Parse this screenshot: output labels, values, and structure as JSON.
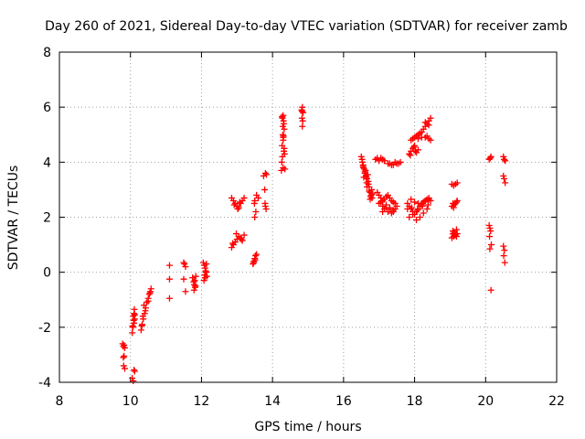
{
  "chart_data": {
    "type": "scatter",
    "title": "Day 260 of 2021, Sidereal Day-to-day VTEC variation (SDTVAR) for receiver zamb",
    "xlabel": "GPS time / hours",
    "ylabel": "SDTVAR / TECUs",
    "xlim": [
      8,
      22
    ],
    "ylim": [
      -4,
      8
    ],
    "xticks": [
      8,
      10,
      12,
      14,
      16,
      18,
      20,
      22
    ],
    "yticks": [
      -4,
      -2,
      0,
      2,
      4,
      6,
      8
    ],
    "xtick_labels": [
      "8",
      "10",
      "12",
      "14",
      "16",
      "18",
      "20",
      "22"
    ],
    "ytick_labels": [
      "-4",
      "-2",
      "0",
      "2",
      "4",
      "6",
      "8"
    ],
    "grid": true,
    "marker": "plus",
    "color": "#ff0000",
    "series": [
      {
        "name": "SDTVAR",
        "x": [
          9.78,
          9.8,
          9.82,
          9.84,
          9.8,
          9.82,
          9.81,
          9.84,
          10.1,
          10.12,
          10.05,
          10.08,
          10.05,
          10.07,
          10.1,
          10.12,
          10.08,
          10.1,
          10.06,
          10.09,
          10.12,
          10.11,
          10.3,
          10.33,
          10.36,
          10.4,
          10.43,
          10.46,
          10.5,
          10.53,
          10.56,
          10.58,
          10.35,
          10.42,
          10.5,
          10.55,
          10.32,
          10.38,
          11.1,
          11.1,
          11.1,
          11.5,
          11.52,
          11.55,
          11.5,
          11.55,
          11.75,
          11.78,
          11.8,
          11.82,
          11.79,
          11.81,
          11.84,
          11.83,
          12.05,
          12.08,
          12.1,
          12.13,
          12.15,
          12.07,
          12.1,
          12.12,
          12.09,
          12.14,
          12.85,
          12.9,
          12.95,
          13.0,
          13.05,
          13.1,
          13.15,
          13.2,
          12.92,
          13.02,
          13.08,
          12.85,
          12.9,
          12.95,
          13.0,
          13.05,
          13.1,
          13.15,
          13.2,
          12.88,
          12.98,
          13.12,
          13.45,
          13.48,
          13.5,
          13.52,
          13.47,
          13.51,
          13.55,
          13.5,
          13.53,
          13.49,
          13.55,
          13.6,
          13.5,
          13.75,
          13.8,
          13.83,
          13.78,
          13.8,
          13.82,
          13.79,
          14.25,
          14.3,
          14.35,
          14.28,
          14.32,
          14.27,
          14.33,
          14.3,
          14.26,
          14.34,
          14.29,
          14.31,
          14.28,
          14.3,
          14.32,
          14.27,
          14.33,
          14.3,
          14.29,
          14.31,
          14.82,
          14.84,
          14.86,
          14.83,
          14.85,
          14.84,
          14.83,
          16.5,
          16.53,
          16.56,
          16.6,
          16.63,
          16.66,
          16.7,
          16.55,
          16.62,
          16.68,
          16.52,
          16.58,
          16.64,
          16.7,
          16.6,
          16.66,
          16.55,
          16.72,
          16.57,
          16.65,
          16.72,
          16.75,
          16.78,
          16.8,
          16.76,
          16.79,
          16.82,
          16.75,
          16.95,
          17.0,
          17.05,
          17.1,
          17.15,
          17.2,
          17.25,
          17.3,
          17.35,
          17.4,
          17.45,
          17.5,
          17.0,
          17.1,
          17.2,
          17.3,
          17.4,
          17.15,
          17.25,
          17.35,
          17.05,
          17.2,
          17.3,
          17.45,
          17.1,
          17.4,
          16.9,
          16.95,
          17.0,
          17.05,
          17.1,
          17.15,
          17.3,
          17.4,
          17.5,
          17.6,
          17.25,
          17.45,
          17.35,
          17.55,
          17.8,
          17.85,
          17.9,
          17.95,
          18.0,
          18.05,
          18.1,
          18.15,
          18.2,
          18.25,
          18.3,
          18.35,
          18.4,
          18.45,
          17.85,
          17.95,
          18.05,
          18.15,
          18.25,
          18.35,
          17.9,
          18.0,
          18.1,
          18.2,
          18.3,
          18.4,
          17.8,
          17.92,
          18.08,
          18.22,
          18.38,
          17.85,
          17.9,
          17.95,
          18.0,
          18.05,
          18.1,
          17.88,
          17.98,
          18.02,
          17.9,
          17.95,
          18.0,
          18.05,
          18.1,
          18.15,
          18.2,
          18.25,
          18.3,
          18.35,
          18.4,
          18.45,
          18.1,
          18.3,
          18.4,
          18.2,
          18.35,
          18.45,
          18.3,
          18.4,
          19.05,
          19.1,
          19.15,
          19.2,
          19.08,
          19.12,
          19.18,
          19.05,
          19.1,
          19.15,
          19.2,
          19.08,
          19.12,
          19.18,
          19.05,
          19.1,
          19.15,
          19.2,
          19.08,
          19.12,
          19.18,
          20.1,
          20.13,
          20.15,
          20.12,
          20.1,
          20.14,
          20.11,
          20.16,
          20.12,
          20.15,
          20.5,
          20.52,
          20.55,
          20.5,
          20.52,
          20.55,
          20.5,
          20.53,
          20.51,
          20.54
        ],
        "y": [
          -2.6,
          -2.7,
          -2.65,
          -2.75,
          -3.1,
          -3.05,
          -3.4,
          -3.5,
          -3.55,
          -3.6,
          -3.85,
          -3.95,
          -2.2,
          -2.0,
          -1.85,
          -1.7,
          -1.6,
          -1.5,
          -1.95,
          -1.75,
          -1.55,
          -1.35,
          -2.1,
          -1.9,
          -1.7,
          -1.5,
          -1.3,
          -1.1,
          -0.95,
          -0.8,
          -0.7,
          -0.6,
          -1.6,
          -1.4,
          -1.05,
          -0.75,
          -1.95,
          -1.2,
          0.25,
          -0.25,
          -0.95,
          0.35,
          0.3,
          0.2,
          -0.25,
          -0.7,
          -0.2,
          -0.35,
          -0.45,
          -0.55,
          -0.65,
          -0.3,
          -0.15,
          -0.5,
          0.35,
          0.25,
          0.15,
          0.0,
          -0.15,
          -0.3,
          -0.2,
          0.05,
          -0.1,
          0.3,
          2.7,
          2.6,
          2.5,
          2.4,
          2.35,
          2.5,
          2.6,
          2.7,
          2.45,
          2.3,
          2.55,
          0.9,
          1.0,
          1.1,
          1.2,
          1.3,
          1.25,
          1.15,
          1.35,
          1.05,
          1.4,
          1.2,
          0.3,
          0.4,
          0.5,
          0.6,
          0.35,
          0.45,
          0.65,
          2.0,
          2.2,
          2.5,
          2.8,
          2.7,
          2.6,
          3.5,
          3.6,
          3.55,
          3.0,
          2.4,
          2.3,
          2.5,
          3.7,
          3.8,
          3.75,
          4.2,
          4.4,
          4.6,
          4.5,
          4.8,
          4.0,
          4.3,
          5.3,
          5.5,
          5.6,
          5.7,
          5.4,
          5.65,
          5.2,
          4.9,
          5.0,
          4.95,
          5.9,
          6.0,
          5.8,
          5.6,
          5.5,
          5.3,
          5.85,
          4.2,
          4.0,
          3.8,
          3.6,
          3.5,
          3.4,
          3.3,
          3.9,
          3.7,
          3.55,
          4.1,
          3.75,
          3.45,
          3.2,
          3.65,
          3.1,
          3.85,
          2.95,
          3.45,
          3.25,
          3.1,
          2.9,
          2.8,
          2.7,
          2.75,
          3.0,
          2.85,
          2.65,
          2.9,
          2.8,
          2.7,
          2.6,
          2.65,
          2.75,
          2.8,
          2.7,
          2.6,
          2.55,
          2.5,
          2.4,
          2.5,
          2.4,
          2.35,
          2.3,
          2.25,
          2.3,
          2.2,
          2.15,
          2.55,
          2.45,
          2.35,
          2.3,
          2.2,
          2.2,
          4.1,
          4.15,
          4.05,
          4.15,
          4.1,
          4.05,
          3.95,
          3.9,
          3.95,
          4.0,
          3.95,
          4.0,
          3.9,
          3.95,
          2.5,
          2.4,
          2.3,
          2.2,
          2.1,
          2.2,
          2.3,
          2.4,
          2.5,
          2.55,
          2.6,
          2.65,
          2.7,
          2.6,
          2.0,
          2.1,
          1.9,
          2.0,
          2.15,
          2.3,
          2.65,
          2.55,
          2.5,
          2.45,
          2.6,
          2.65,
          2.3,
          2.35,
          2.25,
          2.4,
          2.45,
          4.3,
          4.4,
          4.5,
          4.6,
          4.35,
          4.45,
          4.25,
          4.55,
          4.4,
          4.8,
          4.85,
          4.9,
          4.95,
          5.0,
          5.05,
          5.1,
          5.2,
          5.3,
          5.4,
          5.5,
          5.6,
          4.85,
          4.9,
          4.85,
          4.9,
          4.95,
          4.8,
          5.45,
          5.35,
          3.2,
          3.15,
          3.2,
          3.25,
          2.5,
          2.45,
          2.55,
          2.4,
          2.35,
          2.5,
          2.6,
          1.4,
          1.35,
          1.3,
          1.25,
          1.3,
          1.35,
          1.4,
          1.5,
          1.45,
          1.55,
          4.1,
          4.15,
          4.2,
          1.6,
          1.7,
          1.5,
          1.3,
          1.0,
          0.85,
          -0.65,
          4.2,
          4.1,
          4.05,
          3.5,
          3.4,
          3.25,
          0.95,
          0.8,
          0.6,
          0.35
        ]
      }
    ]
  }
}
